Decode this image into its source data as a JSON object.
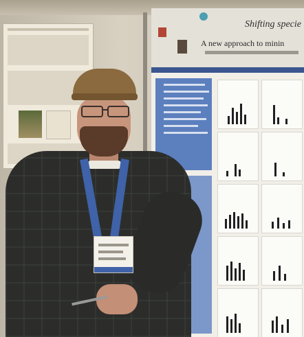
{
  "poster": {
    "title": "Shifting specie",
    "subtitle": "A new approach to minin"
  }
}
